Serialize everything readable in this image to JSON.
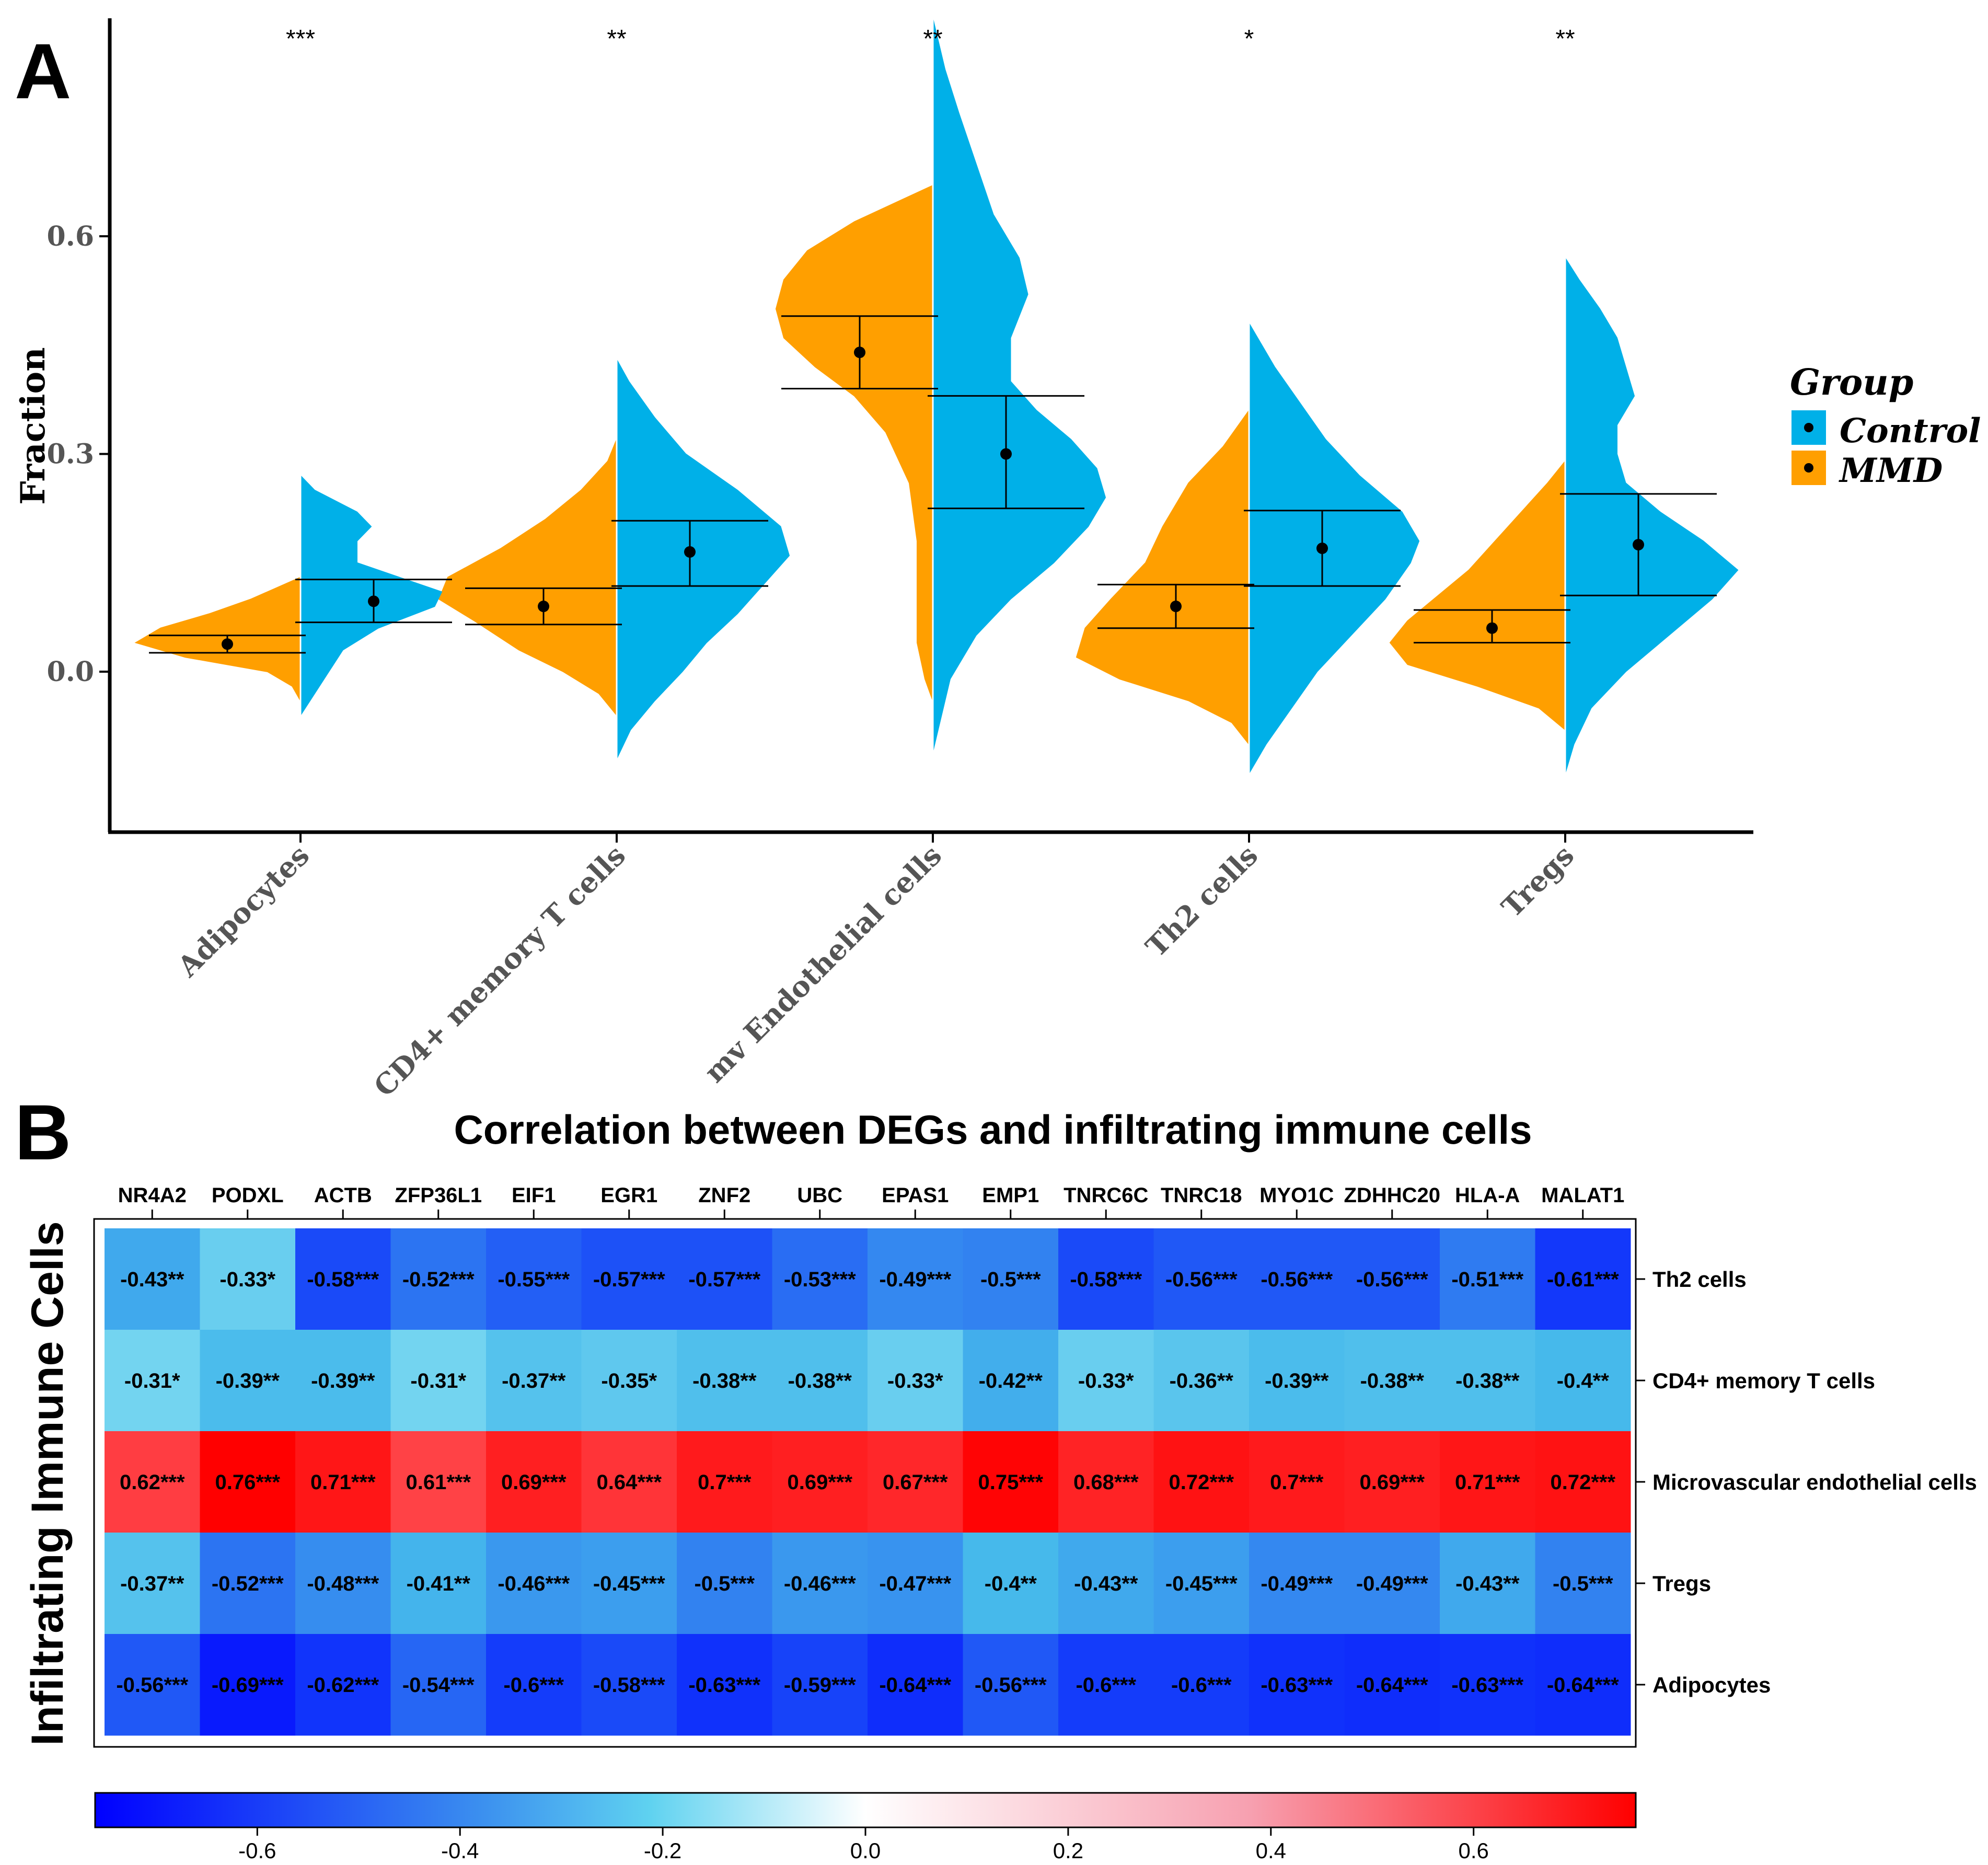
{
  "panel_a": {
    "letter": "A",
    "chart_data": {
      "type": "split-violin",
      "ylabel": "Fraction",
      "yticks": [
        0.0,
        0.3,
        0.6
      ],
      "ylim": [
        -0.22,
        0.9
      ],
      "categories": [
        "Adipocytes",
        "CD4+ memory T cells",
        "mv Endothelial cells",
        "Th2 cells",
        "Tregs"
      ],
      "significance": [
        "***",
        "**",
        "**",
        "*",
        "**"
      ],
      "legend": {
        "title": "Group",
        "items": [
          "Control",
          "MMD"
        ]
      },
      "series": [
        {
          "name": "MMD",
          "color": "#ff9f00",
          "mean": [
            0.038,
            0.09,
            0.44,
            0.09,
            0.06
          ],
          "lower": [
            0.026,
            0.065,
            0.39,
            0.06,
            0.04
          ],
          "upper": [
            0.05,
            0.115,
            0.49,
            0.12,
            0.085
          ],
          "density": [
            [
              [
                -0.04,
                0
              ],
              [
                -0.02,
                0.05
              ],
              [
                0,
                0.2
              ],
              [
                0.02,
                0.7
              ],
              [
                0.04,
                1
              ],
              [
                0.06,
                0.85
              ],
              [
                0.08,
                0.55
              ],
              [
                0.1,
                0.3
              ],
              [
                0.12,
                0.1
              ],
              [
                0.13,
                0
              ]
            ],
            [
              [
                -0.06,
                0
              ],
              [
                -0.03,
                0.1
              ],
              [
                0,
                0.3
              ],
              [
                0.03,
                0.55
              ],
              [
                0.07,
                0.8
              ],
              [
                0.1,
                1
              ],
              [
                0.13,
                0.95
              ],
              [
                0.17,
                0.65
              ],
              [
                0.21,
                0.4
              ],
              [
                0.25,
                0.2
              ],
              [
                0.29,
                0.05
              ],
              [
                0.32,
                0
              ]
            ],
            [
              [
                -0.04,
                0
              ],
              [
                -0.01,
                0.05
              ],
              [
                0.04,
                0.1
              ],
              [
                0.1,
                0.1
              ],
              [
                0.18,
                0.1
              ],
              [
                0.26,
                0.15
              ],
              [
                0.33,
                0.3
              ],
              [
                0.38,
                0.5
              ],
              [
                0.42,
                0.75
              ],
              [
                0.46,
                0.95
              ],
              [
                0.5,
                1
              ],
              [
                0.54,
                0.95
              ],
              [
                0.58,
                0.8
              ],
              [
                0.62,
                0.5
              ],
              [
                0.65,
                0.2
              ],
              [
                0.67,
                0
              ]
            ],
            [
              [
                -0.1,
                0
              ],
              [
                -0.07,
                0.1
              ],
              [
                -0.04,
                0.35
              ],
              [
                -0.01,
                0.75
              ],
              [
                0.02,
                1
              ],
              [
                0.06,
                0.95
              ],
              [
                0.1,
                0.8
              ],
              [
                0.15,
                0.6
              ],
              [
                0.2,
                0.5
              ],
              [
                0.26,
                0.35
              ],
              [
                0.31,
                0.15
              ],
              [
                0.36,
                0
              ]
            ],
            [
              [
                -0.08,
                0
              ],
              [
                -0.05,
                0.15
              ],
              [
                -0.02,
                0.5
              ],
              [
                0.01,
                0.9
              ],
              [
                0.04,
                1
              ],
              [
                0.07,
                0.9
              ],
              [
                0.1,
                0.75
              ],
              [
                0.14,
                0.55
              ],
              [
                0.18,
                0.4
              ],
              [
                0.22,
                0.25
              ],
              [
                0.26,
                0.1
              ],
              [
                0.29,
                0
              ]
            ]
          ]
        },
        {
          "name": "Control",
          "color": "#00b0e8",
          "mean": [
            0.097,
            0.165,
            0.3,
            0.17,
            0.175
          ],
          "lower": [
            0.068,
            0.118,
            0.225,
            0.118,
            0.105
          ],
          "upper": [
            0.127,
            0.208,
            0.38,
            0.222,
            0.245
          ],
          "density": [
            [
              [
                -0.06,
                0
              ],
              [
                -0.03,
                0.1
              ],
              [
                0,
                0.2
              ],
              [
                0.03,
                0.3
              ],
              [
                0.06,
                0.55
              ],
              [
                0.09,
                0.95
              ],
              [
                0.11,
                1
              ],
              [
                0.13,
                0.7
              ],
              [
                0.15,
                0.4
              ],
              [
                0.18,
                0.4
              ],
              [
                0.2,
                0.5
              ],
              [
                0.22,
                0.4
              ],
              [
                0.25,
                0.1
              ],
              [
                0.27,
                0
              ]
            ],
            [
              [
                -0.12,
                0
              ],
              [
                -0.08,
                0.08
              ],
              [
                -0.04,
                0.22
              ],
              [
                0,
                0.38
              ],
              [
                0.04,
                0.52
              ],
              [
                0.08,
                0.7
              ],
              [
                0.12,
                0.85
              ],
              [
                0.16,
                1
              ],
              [
                0.2,
                0.95
              ],
              [
                0.25,
                0.7
              ],
              [
                0.3,
                0.4
              ],
              [
                0.35,
                0.22
              ],
              [
                0.4,
                0.07
              ],
              [
                0.43,
                0
              ]
            ],
            [
              [
                -0.11,
                0
              ],
              [
                -0.06,
                0.05
              ],
              [
                -0.01,
                0.1
              ],
              [
                0.05,
                0.25
              ],
              [
                0.1,
                0.45
              ],
              [
                0.15,
                0.7
              ],
              [
                0.2,
                0.9
              ],
              [
                0.24,
                1
              ],
              [
                0.28,
                0.95
              ],
              [
                0.32,
                0.8
              ],
              [
                0.36,
                0.6
              ],
              [
                0.4,
                0.45
              ],
              [
                0.46,
                0.45
              ],
              [
                0.52,
                0.55
              ],
              [
                0.57,
                0.5
              ],
              [
                0.63,
                0.35
              ],
              [
                0.7,
                0.25
              ],
              [
                0.77,
                0.15
              ],
              [
                0.83,
                0.07
              ],
              [
                0.9,
                0
              ]
            ],
            [
              [
                -0.14,
                0
              ],
              [
                -0.1,
                0.1
              ],
              [
                -0.05,
                0.25
              ],
              [
                0,
                0.4
              ],
              [
                0.05,
                0.6
              ],
              [
                0.1,
                0.8
              ],
              [
                0.15,
                0.95
              ],
              [
                0.18,
                1
              ],
              [
                0.22,
                0.9
              ],
              [
                0.27,
                0.65
              ],
              [
                0.32,
                0.45
              ],
              [
                0.37,
                0.3
              ],
              [
                0.42,
                0.15
              ],
              [
                0.46,
                0.05
              ],
              [
                0.48,
                0
              ]
            ],
            [
              [
                -0.14,
                0
              ],
              [
                -0.1,
                0.05
              ],
              [
                -0.05,
                0.15
              ],
              [
                0,
                0.35
              ],
              [
                0.05,
                0.6
              ],
              [
                0.1,
                0.85
              ],
              [
                0.14,
                1
              ],
              [
                0.18,
                0.8
              ],
              [
                0.22,
                0.55
              ],
              [
                0.26,
                0.35
              ],
              [
                0.3,
                0.3
              ],
              [
                0.34,
                0.3
              ],
              [
                0.38,
                0.4
              ],
              [
                0.42,
                0.35
              ],
              [
                0.46,
                0.3
              ],
              [
                0.5,
                0.2
              ],
              [
                0.54,
                0.08
              ],
              [
                0.57,
                0
              ]
            ]
          ]
        }
      ]
    }
  },
  "panel_b": {
    "letter": "B",
    "chart_data": {
      "type": "heatmap",
      "title": "Correlation between DEGs and infiltrating immune cells",
      "ylabel": "Infiltrating Immune Cells",
      "columns": [
        "NR4A2",
        "PODXL",
        "ACTB",
        "ZFP36L1",
        "EIF1",
        "EGR1",
        "ZNF2",
        "UBC",
        "EPAS1",
        "EMP1",
        "TNRC6C",
        "TNRC18",
        "MYO1C",
        "ZDHHC20",
        "HLA-A",
        "MALAT1"
      ],
      "rows": [
        "Th2 cells",
        "CD4+ memory T cells",
        "Microvascular endothelial cells",
        "Tregs",
        "Adipocytes"
      ],
      "values": [
        [
          -0.43,
          -0.33,
          -0.58,
          -0.52,
          -0.55,
          -0.57,
          -0.57,
          -0.53,
          -0.49,
          -0.5,
          -0.58,
          -0.56,
          -0.56,
          -0.56,
          -0.51,
          -0.61
        ],
        [
          -0.31,
          -0.39,
          -0.39,
          -0.31,
          -0.37,
          -0.35,
          -0.38,
          -0.38,
          -0.33,
          -0.42,
          -0.33,
          -0.36,
          -0.39,
          -0.38,
          -0.38,
          -0.4
        ],
        [
          0.62,
          0.76,
          0.71,
          0.61,
          0.69,
          0.64,
          0.7,
          0.69,
          0.67,
          0.75,
          0.68,
          0.72,
          0.7,
          0.69,
          0.71,
          0.72
        ],
        [
          -0.37,
          -0.52,
          -0.48,
          -0.41,
          -0.46,
          -0.45,
          -0.5,
          -0.46,
          -0.47,
          -0.4,
          -0.43,
          -0.45,
          -0.49,
          -0.49,
          -0.43,
          -0.5
        ],
        [
          -0.56,
          -0.69,
          -0.62,
          -0.54,
          -0.6,
          -0.58,
          -0.63,
          -0.59,
          -0.64,
          -0.56,
          -0.6,
          -0.6,
          -0.63,
          -0.64,
          -0.63,
          -0.64
        ]
      ],
      "labels": [
        [
          "-0.43**",
          "-0.33*",
          "-0.58***",
          "-0.52***",
          "-0.55***",
          "-0.57***",
          "-0.57***",
          "-0.53***",
          "-0.49***",
          "-0.5***",
          "-0.58***",
          "-0.56***",
          "-0.56***",
          "-0.56***",
          "-0.51***",
          "-0.61***"
        ],
        [
          "-0.31*",
          "-0.39**",
          "-0.39**",
          "-0.31*",
          "-0.37**",
          "-0.35*",
          "-0.38**",
          "-0.38**",
          "-0.33*",
          "-0.42**",
          "-0.33*",
          "-0.36**",
          "-0.39**",
          "-0.38**",
          "-0.38**",
          "-0.4**"
        ],
        [
          "0.62***",
          "0.76***",
          "0.71***",
          "0.61***",
          "0.69***",
          "0.64***",
          "0.7***",
          "0.69***",
          "0.67***",
          "0.75***",
          "0.68***",
          "0.72***",
          "0.7***",
          "0.69***",
          "0.71***",
          "0.72***"
        ],
        [
          "-0.37**",
          "-0.52***",
          "-0.48***",
          "-0.41**",
          "-0.46***",
          "-0.45***",
          "-0.5***",
          "-0.46***",
          "-0.47***",
          "-0.4**",
          "-0.43**",
          "-0.45***",
          "-0.49***",
          "-0.49***",
          "-0.43**",
          "-0.5***"
        ],
        [
          "-0.56***",
          "-0.69***",
          "-0.62***",
          "-0.54***",
          "-0.6***",
          "-0.58***",
          "-0.63***",
          "-0.59***",
          "-0.64***",
          "-0.56***",
          "-0.6***",
          "-0.6***",
          "-0.63***",
          "-0.64***",
          "-0.63***",
          "-0.64***"
        ]
      ],
      "colorscale": {
        "min": -0.76,
        "max": 0.76,
        "low": "#0000ff",
        "mid": "#ffffff",
        "high": "#ff0000",
        "ticks": [
          -0.6,
          -0.4,
          -0.2,
          0.0,
          0.2,
          0.4,
          0.6
        ]
      }
    }
  }
}
